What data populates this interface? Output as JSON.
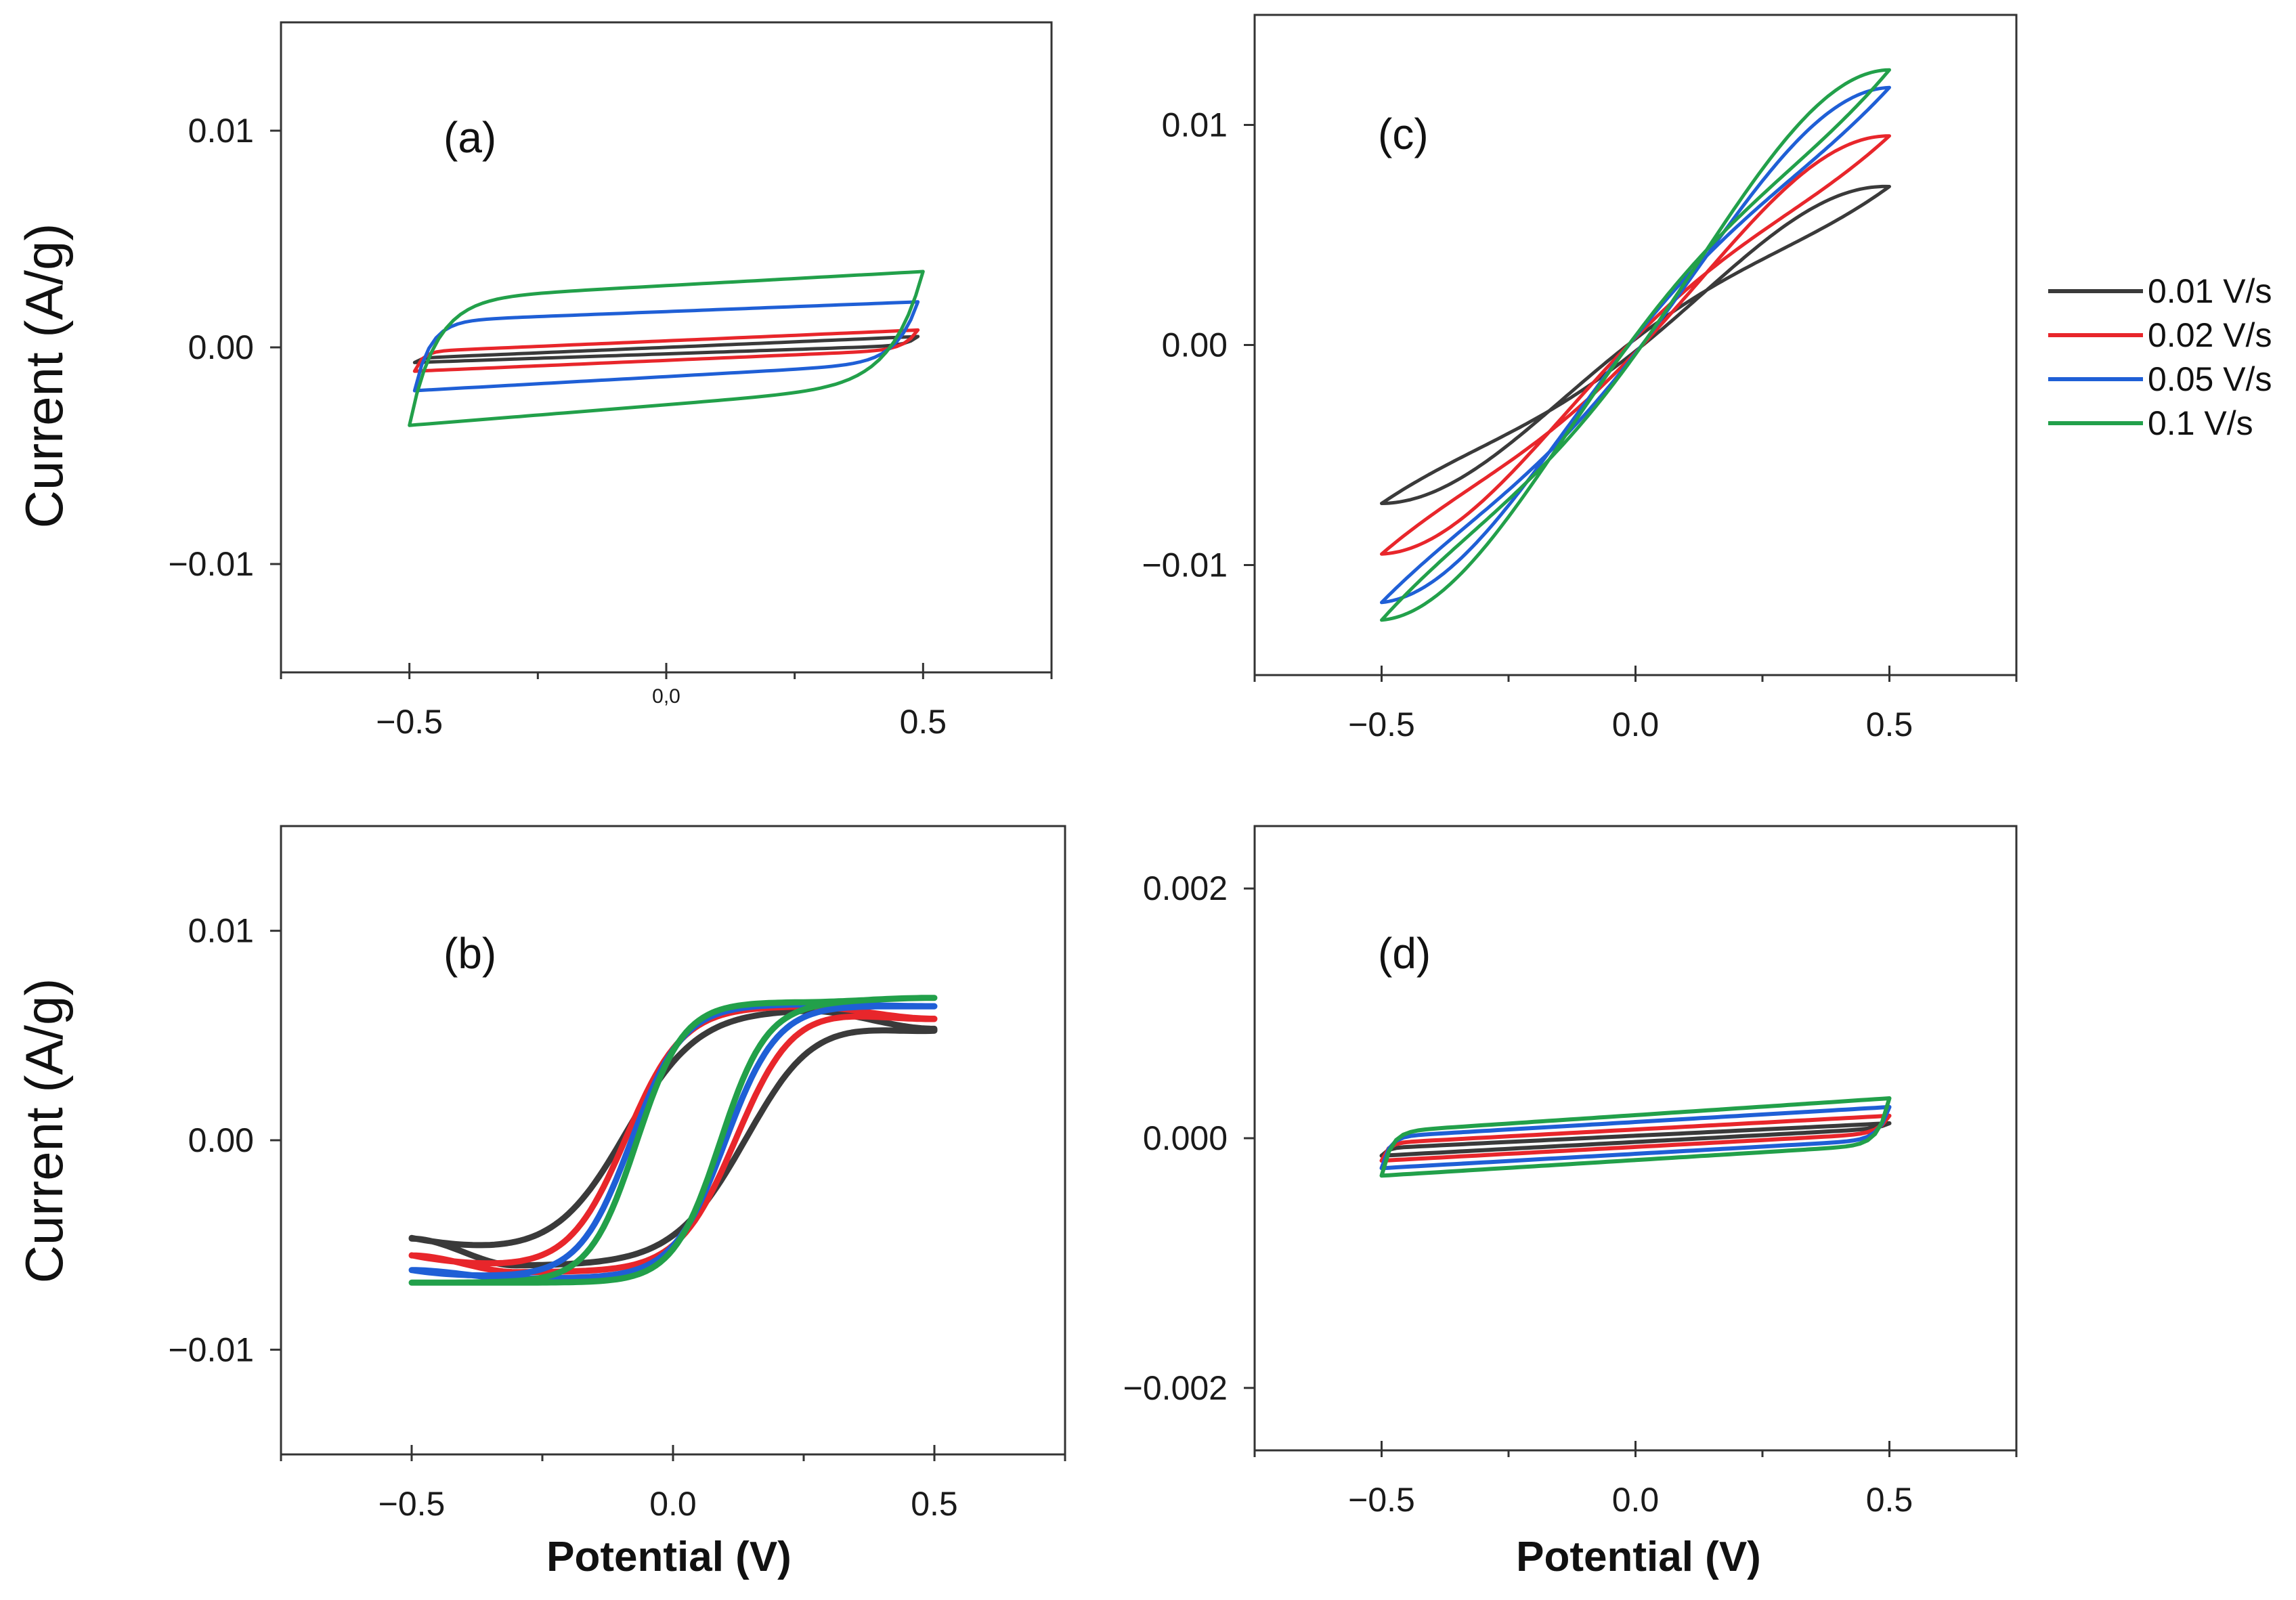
{
  "figure": {
    "legend": {
      "entries": [
        {
          "label": "0.01 V/s",
          "color": "#3a3a3a"
        },
        {
          "label": "0.02 V/s",
          "color": "#e8262b"
        },
        {
          "label": "0.05 V/s",
          "color": "#1f5fd6"
        },
        {
          "label": "0.1 V/s",
          "color": "#22a04a"
        }
      ]
    }
  },
  "chart_data": [
    {
      "id": "a",
      "type": "line",
      "panel_label": "(a)",
      "ylabel": "Current (A/g)",
      "xlabel": "",
      "xlim": [
        -0.75,
        0.75
      ],
      "ylim": [
        -0.015,
        0.015
      ],
      "xticks": [
        {
          "v": -0.5,
          "label": "-0.5"
        },
        {
          "v": 0.0,
          "label": "0,0",
          "small": true
        },
        {
          "v": 0.5,
          "label": "0.5"
        }
      ],
      "yticks": [
        {
          "v": 0.01,
          "label": "0.01"
        },
        {
          "v": 0.0,
          "label": "0.00"
        },
        {
          "v": -0.01,
          "label": "-0.01"
        }
      ],
      "series": [
        {
          "name": "0.01 V/s",
          "shape": "rect",
          "params": [
            -0.49,
            0.49,
            -0.0005,
            0.0005,
            -0.0007,
            0.0001,
            0.01,
            0.02
          ]
        },
        {
          "name": "0.02 V/s",
          "shape": "rect",
          "params": [
            -0.49,
            0.49,
            -0.0002,
            0.0008,
            -0.0011,
            -0.0001,
            0.015,
            0.025
          ]
        },
        {
          "name": "0.05 V/s",
          "shape": "rect",
          "params": [
            -0.49,
            0.49,
            0.0012,
            0.0021,
            -0.002,
            -0.0007,
            0.03,
            0.04
          ]
        },
        {
          "name": "0.1 V/s",
          "shape": "rect",
          "params": [
            -0.5,
            0.5,
            0.0022,
            0.0035,
            -0.0036,
            -0.0017,
            0.05,
            0.06
          ]
        }
      ]
    },
    {
      "id": "b",
      "type": "line",
      "panel_label": "(b)",
      "ylabel": "Current (A/g)",
      "xlabel": "Potential (V)",
      "xlim": [
        -0.75,
        0.75
      ],
      "ylim": [
        -0.015,
        0.015
      ],
      "xticks": [
        {
          "v": -0.5,
          "label": "-0.5"
        },
        {
          "v": 0.0,
          "label": "0.0"
        },
        {
          "v": 0.5,
          "label": "0.5"
        }
      ],
      "yticks": [
        {
          "v": 0.01,
          "label": "0.01"
        },
        {
          "v": 0.0,
          "label": "0.00"
        },
        {
          "v": -0.01,
          "label": "-0.01"
        }
      ],
      "series": [
        {
          "name": "0.01 V/s",
          "shape": "hyst",
          "params": [
            -0.5,
            0.5,
            0.0053,
            -0.0047,
            0.0062,
            -0.006,
            -0.09,
            0.14,
            0.07,
            0.12,
            0.25
          ]
        },
        {
          "name": "0.02 V/s",
          "shape": "hyst",
          "params": [
            -0.5,
            0.5,
            0.0058,
            -0.0055,
            0.0064,
            -0.0063,
            -0.09,
            0.12,
            0.055,
            0.09,
            0.16
          ]
        },
        {
          "name": "0.05 V/s",
          "shape": "hyst",
          "params": [
            -0.5,
            0.5,
            0.0064,
            -0.0062,
            0.0065,
            -0.0066,
            -0.08,
            0.1,
            0.05,
            0.065,
            0.1
          ]
        },
        {
          "name": "0.1 V/s",
          "shape": "hyst",
          "params": [
            -0.5,
            0.5,
            0.0068,
            -0.0068,
            0.0066,
            -0.0068,
            -0.07,
            0.09,
            0.045,
            0.05,
            0.08
          ]
        }
      ]
    },
    {
      "id": "c",
      "type": "line",
      "panel_label": "(c)",
      "ylabel": "",
      "xlabel": "",
      "xlim": [
        -0.75,
        0.75
      ],
      "ylim": [
        -0.015,
        0.015
      ],
      "xticks": [
        {
          "v": -0.5,
          "label": "-0.5"
        },
        {
          "v": 0.0,
          "label": "0.0"
        },
        {
          "v": 0.5,
          "label": "0.5"
        }
      ],
      "yticks": [
        {
          "v": 0.01,
          "label": "0.01"
        },
        {
          "v": 0.0,
          "label": "0.00"
        },
        {
          "v": -0.01,
          "label": "-0.01"
        }
      ],
      "series": [
        {
          "name": "0.01 V/s",
          "shape": "lens",
          "params": [
            0.0072,
            0.0053,
            0.0,
            0.02,
            0.4
          ]
        },
        {
          "name": "0.02 V/s",
          "shape": "lens",
          "params": [
            0.0095,
            0.0064,
            0.0,
            0.02,
            0.4
          ]
        },
        {
          "name": "0.05 V/s",
          "shape": "lens",
          "params": [
            0.0117,
            0.0072,
            0.0,
            0.02,
            0.4
          ]
        },
        {
          "name": "0.1 V/s",
          "shape": "lens",
          "params": [
            0.0125,
            0.0081,
            0.0,
            0.02,
            0.4
          ]
        }
      ]
    },
    {
      "id": "d",
      "type": "line",
      "panel_label": "(d)",
      "ylabel": "",
      "xlabel": "Potential (V)",
      "xlim": [
        -0.75,
        0.75
      ],
      "ylim": [
        -0.0025,
        0.0025
      ],
      "xticks": [
        {
          "v": -0.5,
          "label": "-0.5"
        },
        {
          "v": 0.0,
          "label": "0.0"
        },
        {
          "v": 0.5,
          "label": "0.5"
        }
      ],
      "yticks": [
        {
          "v": 0.002,
          "label": "0.002"
        },
        {
          "v": 0.0,
          "label": "0.000"
        },
        {
          "v": -0.002,
          "label": "-0.002"
        }
      ],
      "series": [
        {
          "name": "0.01 V/s",
          "shape": "rect",
          "params": [
            -0.5,
            0.5,
            -8e-05,
            0.00012,
            -0.00014,
            8e-05,
            0.01,
            0.02
          ]
        },
        {
          "name": "0.02 V/s",
          "shape": "rect",
          "params": [
            -0.5,
            0.5,
            -4e-05,
            0.00018,
            -0.00018,
            4e-05,
            0.012,
            0.02
          ]
        },
        {
          "name": "0.05 V/s",
          "shape": "rect",
          "params": [
            -0.5,
            0.5,
            1e-05,
            0.00025,
            -0.00024,
            -1e-05,
            0.015,
            0.02
          ]
        },
        {
          "name": "0.1 V/s",
          "shape": "rect",
          "params": [
            -0.5,
            0.5,
            5e-05,
            0.00032,
            -0.0003,
            -5e-05,
            0.018,
            0.02
          ]
        }
      ]
    }
  ]
}
